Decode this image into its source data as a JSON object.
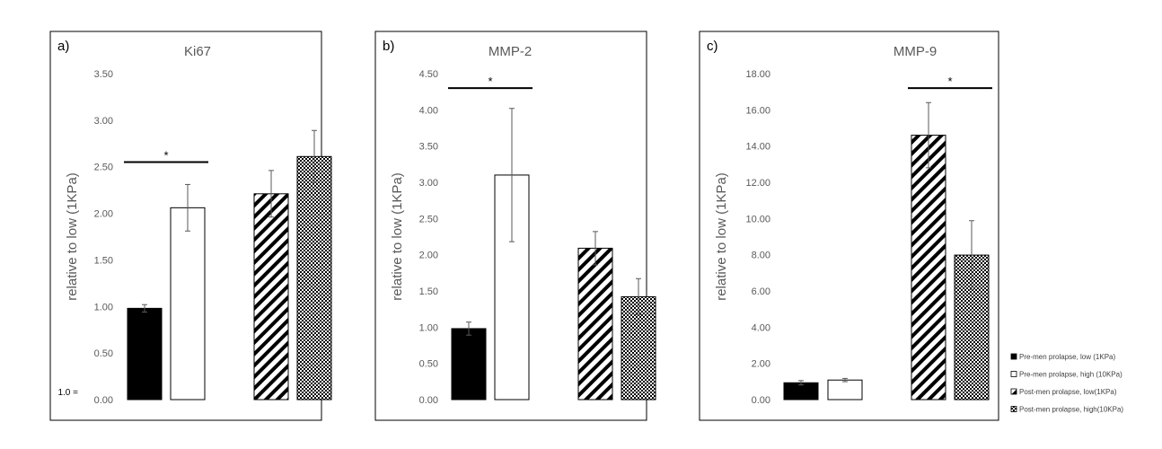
{
  "chart_data": [
    {
      "type": "bar",
      "panel_label": "a)",
      "title": "Ki67",
      "ylabel": "relative to low (1KPa)",
      "ylim": [
        0,
        3.5
      ],
      "yticks": [
        "0.00",
        "0.50",
        "1.00",
        "1.50",
        "2.00",
        "2.50",
        "3.00",
        "3.50"
      ],
      "baseline_note": "1.0 =",
      "values": [
        0.98,
        2.06,
        2.21,
        2.61
      ],
      "errors": [
        0.04,
        0.25,
        0.25,
        0.28
      ],
      "significance": [
        {
          "from": 0,
          "to": 1,
          "level": 2.55,
          "label": "*"
        }
      ]
    },
    {
      "type": "bar",
      "panel_label": "b)",
      "title": "MMP-2",
      "ylabel": "relative to low (1KPa)",
      "ylim": [
        0,
        4.5
      ],
      "yticks": [
        "0.00",
        "0.50",
        "1.00",
        "1.50",
        "2.00",
        "2.50",
        "3.00",
        "3.50",
        "4.00",
        "4.50"
      ],
      "baseline_note": "",
      "values": [
        0.98,
        3.1,
        2.09,
        1.42
      ],
      "errors": [
        0.09,
        0.92,
        0.23,
        0.25
      ],
      "significance": [
        {
          "from": 0,
          "to": 1,
          "level": 4.3,
          "label": "*"
        }
      ]
    },
    {
      "type": "bar",
      "panel_label": "c)",
      "title": "MMP-9",
      "ylabel": "relative to low (1KPa)",
      "ylim": [
        0,
        18
      ],
      "yticks": [
        "0.00",
        "2.00",
        "4.00",
        "6.00",
        "8.00",
        "10.00",
        "12.00",
        "14.00",
        "16.00",
        "18.00"
      ],
      "baseline_note": "",
      "values": [
        0.93,
        1.08,
        14.6,
        7.98
      ],
      "errors": [
        0.12,
        0.09,
        1.8,
        1.9
      ],
      "significance": [
        {
          "from": 2,
          "to": 3,
          "level": 17.2,
          "label": "*"
        }
      ]
    }
  ],
  "legend": {
    "placement": "right",
    "items": [
      {
        "label": "Pre-men prolapse, low (1KPa)",
        "fill": "solid"
      },
      {
        "label": "Pre-men prolapse, high (10KPa)",
        "fill": "white"
      },
      {
        "label": "Post-men prolapse, low(1KPa)",
        "fill": "diagonal"
      },
      {
        "label": "Post-men prolapse, high(10KPa)",
        "fill": "checker"
      }
    ]
  },
  "colors": {
    "bar_dark": "#000000",
    "tick_text": "#595959",
    "frame": "#000000"
  }
}
